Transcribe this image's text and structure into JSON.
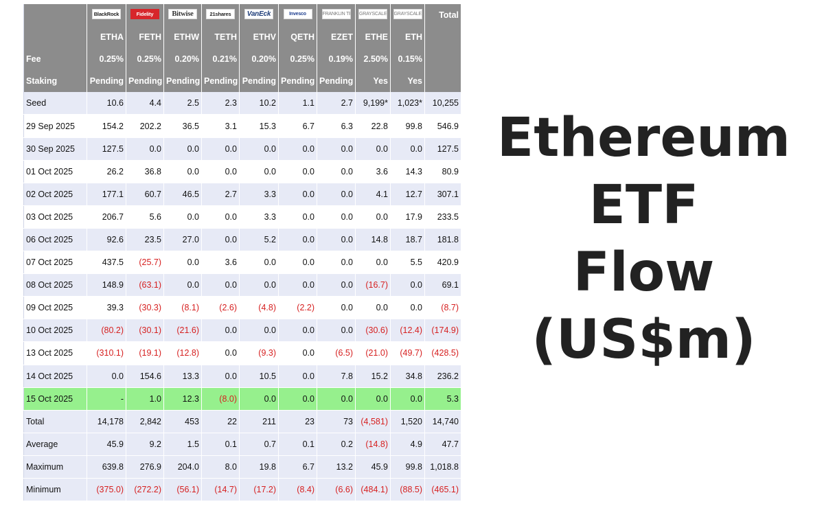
{
  "issuers": [
    {
      "name": "BlackRock",
      "style": "plain"
    },
    {
      "name": "Fidelity",
      "style": "red"
    },
    {
      "name": "Bitwise",
      "style": "bitwise"
    },
    {
      "name": "21shares",
      "style": "plain"
    },
    {
      "name": "VanEck",
      "style": "vaneck"
    },
    {
      "name": "Invesco",
      "style": "invesco"
    },
    {
      "name": "FRANKLIN TEMPLETON",
      "style": "gray"
    },
    {
      "name": "GRAYSCALE",
      "style": "gray"
    },
    {
      "name": "GRAYSCALE",
      "style": "gray"
    }
  ],
  "total_header": "Total",
  "tickers": [
    "ETHA",
    "FETH",
    "ETHW",
    "TETH",
    "ETHV",
    "QETH",
    "EZET",
    "ETHE",
    "ETH"
  ],
  "fee": {
    "label": "Fee",
    "values": [
      "0.25%",
      "0.25%",
      "0.20%",
      "0.21%",
      "0.20%",
      "0.25%",
      "0.19%",
      "2.50%",
      "0.15%"
    ]
  },
  "staking": {
    "label": "Staking",
    "values": [
      "Pending",
      "Pending",
      "Pending",
      "Pending",
      "Pending",
      "Pending",
      "Pending",
      "Yes",
      "Yes"
    ]
  },
  "rows": [
    {
      "date": "Seed",
      "values": [
        "10.6",
        "4.4",
        "2.5",
        "2.3",
        "10.2",
        "1.1",
        "2.7",
        "9,199*",
        "1,023*",
        "10,255"
      ]
    },
    {
      "date": "29 Sep 2025",
      "values": [
        "154.2",
        "202.2",
        "36.5",
        "3.1",
        "15.3",
        "6.7",
        "6.3",
        "22.8",
        "99.8",
        "546.9"
      ]
    },
    {
      "date": "30 Sep 2025",
      "values": [
        "127.5",
        "0.0",
        "0.0",
        "0.0",
        "0.0",
        "0.0",
        "0.0",
        "0.0",
        "0.0",
        "127.5"
      ]
    },
    {
      "date": "01 Oct 2025",
      "values": [
        "26.2",
        "36.8",
        "0.0",
        "0.0",
        "0.0",
        "0.0",
        "0.0",
        "3.6",
        "14.3",
        "80.9"
      ]
    },
    {
      "date": "02 Oct 2025",
      "values": [
        "177.1",
        "60.7",
        "46.5",
        "2.7",
        "3.3",
        "0.0",
        "0.0",
        "4.1",
        "12.7",
        "307.1"
      ]
    },
    {
      "date": "03 Oct 2025",
      "values": [
        "206.7",
        "5.6",
        "0.0",
        "0.0",
        "3.3",
        "0.0",
        "0.0",
        "0.0",
        "17.9",
        "233.5"
      ]
    },
    {
      "date": "06 Oct 2025",
      "values": [
        "92.6",
        "23.5",
        "27.0",
        "0.0",
        "5.2",
        "0.0",
        "0.0",
        "14.8",
        "18.7",
        "181.8"
      ]
    },
    {
      "date": "07 Oct 2025",
      "values": [
        "437.5",
        "(25.7)",
        "0.0",
        "3.6",
        "0.0",
        "0.0",
        "0.0",
        "0.0",
        "5.5",
        "420.9"
      ]
    },
    {
      "date": "08 Oct 2025",
      "values": [
        "148.9",
        "(63.1)",
        "0.0",
        "0.0",
        "0.0",
        "0.0",
        "0.0",
        "(16.7)",
        "0.0",
        "69.1"
      ]
    },
    {
      "date": "09 Oct 2025",
      "values": [
        "39.3",
        "(30.3)",
        "(8.1)",
        "(2.6)",
        "(4.8)",
        "(2.2)",
        "0.0",
        "0.0",
        "0.0",
        "(8.7)"
      ]
    },
    {
      "date": "10 Oct 2025",
      "values": [
        "(80.2)",
        "(30.1)",
        "(21.6)",
        "0.0",
        "0.0",
        "0.0",
        "0.0",
        "(30.6)",
        "(12.4)",
        "(174.9)"
      ]
    },
    {
      "date": "13 Oct 2025",
      "values": [
        "(310.1)",
        "(19.1)",
        "(12.8)",
        "0.0",
        "(9.3)",
        "0.0",
        "(6.5)",
        "(21.0)",
        "(49.7)",
        "(428.5)"
      ]
    },
    {
      "date": "14 Oct 2025",
      "values": [
        "0.0",
        "154.6",
        "13.3",
        "0.0",
        "10.5",
        "0.0",
        "7.8",
        "15.2",
        "34.8",
        "236.2"
      ]
    },
    {
      "date": "15 Oct 2025",
      "values": [
        "-",
        "1.0",
        "12.3",
        "(8.0)",
        "0.0",
        "0.0",
        "0.0",
        "0.0",
        "0.0",
        "5.3"
      ],
      "highlight": true
    }
  ],
  "summary": [
    {
      "label": "Total",
      "values": [
        "14,178",
        "2,842",
        "453",
        "22",
        "211",
        "23",
        "73",
        "(4,581)",
        "1,520",
        "14,740"
      ]
    },
    {
      "label": "Average",
      "values": [
        "45.9",
        "9.2",
        "1.5",
        "0.1",
        "0.7",
        "0.1",
        "0.2",
        "(14.8)",
        "4.9",
        "47.7"
      ]
    },
    {
      "label": "Maximum",
      "values": [
        "639.8",
        "276.9",
        "204.0",
        "8.0",
        "19.8",
        "6.7",
        "13.2",
        "45.9",
        "99.8",
        "1,018.8"
      ]
    },
    {
      "label": "Minimum",
      "values": [
        "(375.0)",
        "(272.2)",
        "(56.1)",
        "(14.7)",
        "(17.2)",
        "(8.4)",
        "(6.6)",
        "(484.1)",
        "(88.5)",
        "(465.1)"
      ]
    }
  ],
  "title_lines": [
    "Ethereum",
    "ETF",
    "Flow",
    "(US$m)"
  ]
}
